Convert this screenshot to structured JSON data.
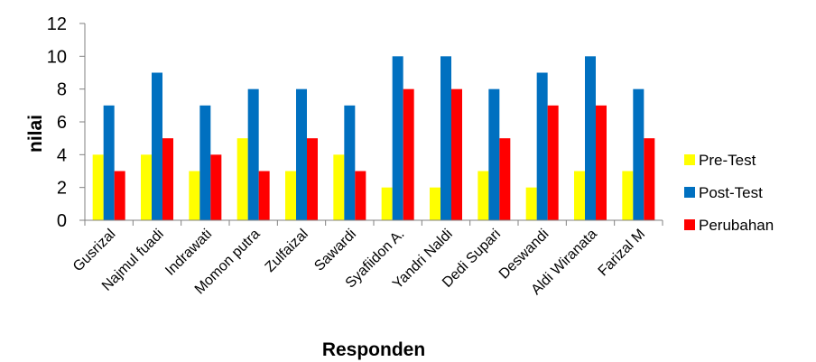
{
  "chart_data": {
    "type": "bar",
    "categories": [
      "Gusrizal",
      "Najmul fuadi",
      "Indrawati",
      "Momon putra",
      "Zulfaizal",
      "Sawardi",
      "Syafiidon A.",
      "Yandri Naldi",
      "Dedi Supari",
      "Deswandi",
      "Aldi Wiranata",
      "Farizal M"
    ],
    "series": [
      {
        "name": "Pre-Test",
        "color": "#ffff00",
        "values": [
          4,
          4,
          3,
          5,
          3,
          4,
          2,
          2,
          3,
          2,
          3,
          3
        ]
      },
      {
        "name": "Post-Test",
        "color": "#0070c0",
        "values": [
          7,
          9,
          7,
          8,
          8,
          7,
          10,
          10,
          8,
          9,
          10,
          8
        ]
      },
      {
        "name": "Perubahan",
        "color": "#ff0000",
        "values": [
          3,
          5,
          4,
          3,
          5,
          3,
          8,
          8,
          5,
          7,
          7,
          5
        ]
      }
    ],
    "ylabel": "nilai",
    "xlabel": "Responden",
    "ylim": [
      0,
      12
    ],
    "yticks": [
      0,
      2,
      4,
      6,
      8,
      10,
      12
    ],
    "legend_position": "right",
    "grid": false
  }
}
